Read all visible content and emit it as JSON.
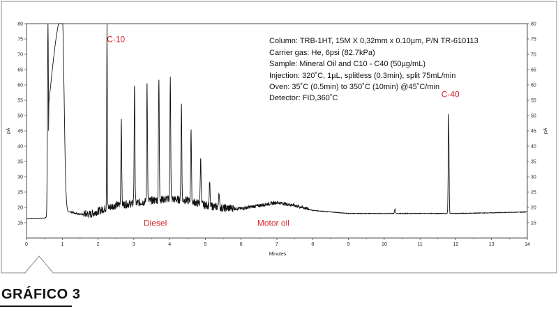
{
  "figure_label": "GRÁFICO 3",
  "chart_data": {
    "type": "line",
    "xlabel": "Minutes",
    "ylabel": "pA",
    "xlim": [
      0,
      14
    ],
    "ylim": [
      10,
      80
    ],
    "x_ticks": [
      "0",
      "1",
      "2",
      "3",
      "4",
      "5",
      "6",
      "7",
      "8",
      "9",
      "10",
      "11",
      "12",
      "13",
      "14"
    ],
    "y_ticks": [
      "15",
      "20",
      "25",
      "30",
      "35",
      "40",
      "45",
      "50",
      "55",
      "60",
      "65",
      "70",
      "75",
      "80"
    ],
    "info_lines": [
      "Column: TRB-1HT, 15M X 0,32mm x 0.10µm, P/N TR-610113",
      "Carrier gas: He, 6psi (82.7kPa)",
      "Sample: Mineral Oil and C10 - C40 (50µg/mL)",
      "Injection: 320˚C, 1µL, splitless (0.3min), split 75mL/min",
      "Oven: 35˚C (0.5min) to 350˚C (10min) @45˚C/min",
      "Detector: FID,360˚C"
    ],
    "annotations": [
      {
        "text": "C-10",
        "x": 2.5,
        "y": 74
      },
      {
        "text": "C-40",
        "x": 11.85,
        "y": 56
      },
      {
        "text": "Diesel",
        "x": 3.6,
        "y": 14
      },
      {
        "text": "Motor oil",
        "x": 6.9,
        "y": 14
      }
    ],
    "baseline": [
      [
        0,
        16.3
      ],
      [
        0.5,
        16.5
      ],
      [
        0.6,
        17
      ],
      [
        1.2,
        18.5
      ],
      [
        1.5,
        17.7
      ],
      [
        1.8,
        17.5
      ],
      [
        2.0,
        18.5
      ],
      [
        2.5,
        20.5
      ],
      [
        3.0,
        21
      ],
      [
        3.5,
        22
      ],
      [
        4.0,
        22.5
      ],
      [
        4.5,
        22
      ],
      [
        5.0,
        20.5
      ],
      [
        5.5,
        19.5
      ],
      [
        6.0,
        19.5
      ],
      [
        6.5,
        20.5
      ],
      [
        7.0,
        21.5
      ],
      [
        7.5,
        20.5
      ],
      [
        8.0,
        19
      ],
      [
        8.5,
        18.5
      ],
      [
        9.0,
        18
      ],
      [
        10.0,
        18
      ],
      [
        11.0,
        18
      ],
      [
        12.0,
        18
      ],
      [
        13.0,
        18.2
      ],
      [
        14.0,
        18.5
      ]
    ],
    "peaks": [
      {
        "x": 0.6,
        "y": 80
      },
      {
        "x": 1.0,
        "y": 80
      },
      {
        "x": 2.25,
        "y": 80
      },
      {
        "x": 2.65,
        "y": 49
      },
      {
        "x": 3.02,
        "y": 59
      },
      {
        "x": 3.37,
        "y": 62
      },
      {
        "x": 3.7,
        "y": 62
      },
      {
        "x": 4.02,
        "y": 63
      },
      {
        "x": 4.33,
        "y": 54
      },
      {
        "x": 4.6,
        "y": 46
      },
      {
        "x": 4.87,
        "y": 36
      },
      {
        "x": 5.12,
        "y": 28
      },
      {
        "x": 5.38,
        "y": 25
      },
      {
        "x": 10.3,
        "y": 19.5
      },
      {
        "x": 11.8,
        "y": 51
      }
    ]
  }
}
